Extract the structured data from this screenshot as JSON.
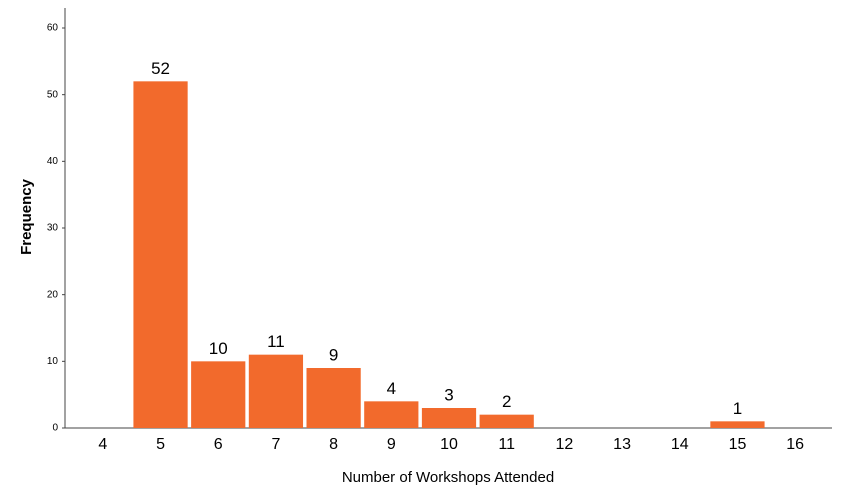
{
  "chart_data": {
    "type": "bar",
    "x_label": "Number of Workshops Attended",
    "y_label": "Frequency",
    "categories": [
      "4",
      "5",
      "6",
      "7",
      "8",
      "9",
      "10",
      "11",
      "12",
      "13",
      "14",
      "15",
      "16"
    ],
    "values": [
      null,
      52,
      10,
      11,
      9,
      4,
      3,
      2,
      null,
      null,
      null,
      1,
      null
    ],
    "color": "#f26a2c",
    "ylim": [
      0,
      63
    ],
    "yticks": [
      0,
      10,
      20,
      30,
      40,
      50,
      60
    ],
    "grid": false
  }
}
